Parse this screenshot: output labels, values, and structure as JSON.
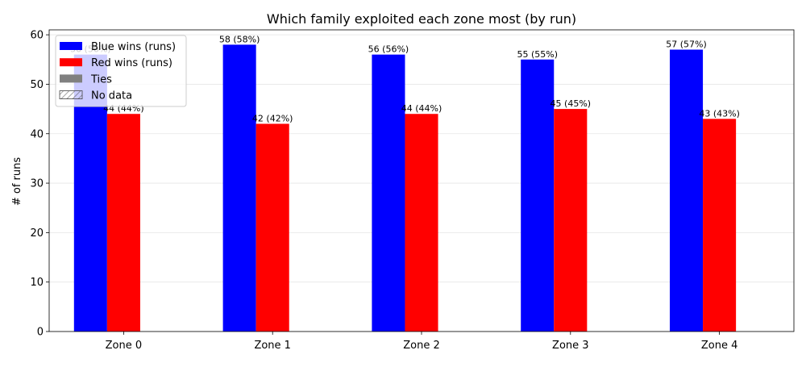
{
  "chart_data": {
    "type": "bar",
    "title": "Which family exploited each zone most (by run)",
    "xlabel": "",
    "ylabel": "# of runs",
    "categories": [
      "Zone 0",
      "Zone 1",
      "Zone 2",
      "Zone 3",
      "Zone 4"
    ],
    "ylim": [
      0,
      61
    ],
    "yticks": [
      0,
      10,
      20,
      30,
      40,
      50,
      60
    ],
    "grid": "y",
    "legend_position": "top-left",
    "series": [
      {
        "name": "Blue wins (runs)",
        "color": "#0000ff",
        "values": [
          56,
          58,
          56,
          55,
          57
        ],
        "labels": [
          "56 (56%)",
          "58 (58%)",
          "56 (56%)",
          "55 (55%)",
          "57 (57%)"
        ]
      },
      {
        "name": "Red wins (runs)",
        "color": "#ff0000",
        "values": [
          44,
          42,
          44,
          45,
          43
        ],
        "labels": [
          "44 (44%)",
          "42 (42%)",
          "44 (44%)",
          "45 (45%)",
          "43 (43%)"
        ]
      },
      {
        "name": "Ties",
        "color": "#808080",
        "values": [
          0,
          0,
          0,
          0,
          0
        ]
      },
      {
        "name": "No data",
        "color": "#ffffff",
        "pattern": "hatched",
        "values": [
          0,
          0,
          0,
          0,
          0
        ]
      }
    ]
  }
}
